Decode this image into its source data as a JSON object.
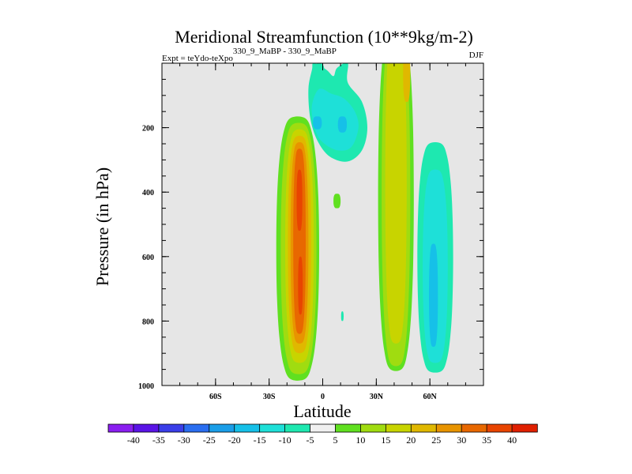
{
  "chart_data": {
    "type": "contour",
    "title": "Meridional Streamfunction (10**9kg/m-2)",
    "subtitle_left": "Expt = teYdo-teXpo",
    "subtitle_left_sup": "330_9_MaBP - 330_9_MaBP",
    "subtitle_right": "DJF",
    "xlabel": "Latitude",
    "ylabel": "Pressure (in hPa)",
    "xlim": [
      -90,
      90
    ],
    "ylim": [
      0,
      1000
    ],
    "y_inverted": true,
    "x_ticks": [
      {
        "value": -60,
        "label": "60S"
      },
      {
        "value": -30,
        "label": "30S"
      },
      {
        "value": 0,
        "label": "0"
      },
      {
        "value": 30,
        "label": "30N"
      },
      {
        "value": 60,
        "label": "60N"
      }
    ],
    "y_ticks": [
      {
        "value": 200,
        "label": "200"
      },
      {
        "value": 400,
        "label": "400"
      },
      {
        "value": 600,
        "label": "600"
      },
      {
        "value": 800,
        "label": "800"
      },
      {
        "value": 1000,
        "label": "1000"
      }
    ],
    "colorbar": {
      "levels": [
        "-40",
        "-35",
        "-30",
        "-25",
        "-20",
        "-15",
        "-10",
        "-5",
        "5",
        "10",
        "15",
        "20",
        "25",
        "30",
        "35",
        "40"
      ],
      "colors": [
        "#8a1ef0",
        "#5a14e6",
        "#3a3ee8",
        "#2a6ef0",
        "#1a9ee8",
        "#16c0e8",
        "#1ee0d8",
        "#1ee8b0",
        "#f0f0f0",
        "#60e020",
        "#a0dc10",
        "#c8d400",
        "#e0b800",
        "#e89400",
        "#e86800",
        "#e84400",
        "#e02000"
      ]
    },
    "features": [
      {
        "sign": "positive",
        "max_level": "35",
        "lat_range": [
          -25,
          -3
        ],
        "p_range": [
          165,
          975
        ],
        "core_lat": -13,
        "core_p": [
          260,
          840
        ]
      },
      {
        "sign": "positive",
        "max_level": "20",
        "lat_range": [
          32,
          50
        ],
        "p_range": [
          0,
          955
        ],
        "core_lat": 40
      },
      {
        "sign": "negative",
        "min_level": "-15",
        "lat_range": [
          -5,
          22
        ],
        "p_range": [
          0,
          310
        ],
        "core_lat": 5,
        "core_p": [
          170,
          200
        ]
      },
      {
        "sign": "negative",
        "min_level": "-15",
        "lat_range": [
          55,
          73
        ],
        "p_range": [
          245,
          955
        ],
        "core_lat": 62,
        "core_p": [
          560,
          880
        ]
      },
      {
        "sign": "negative",
        "min_level": "-5",
        "lat_range": [
          -6,
          2
        ],
        "p_range": [
          0,
          60
        ]
      }
    ],
    "background_color": "#e6e6e6"
  }
}
